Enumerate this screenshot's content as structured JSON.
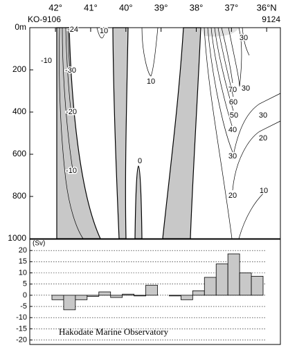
{
  "chart_data": [
    {
      "type": "section",
      "station_start": "KO-9106",
      "station_end": "9124",
      "xlim": [
        42.73,
        35.61
      ],
      "xticks": [
        {
          "value": 42,
          "label": "42°"
        },
        {
          "value": 41,
          "label": "41°"
        },
        {
          "value": 40,
          "label": "40°"
        },
        {
          "value": 39,
          "label": "39°"
        },
        {
          "value": 38,
          "label": "38°"
        },
        {
          "value": 37,
          "label": "37°"
        },
        {
          "value": 36,
          "label": "36°N"
        }
      ],
      "ylim": [
        0,
        1000
      ],
      "yticks": [
        {
          "value": 0,
          "label": "0m"
        },
        200,
        400,
        600,
        800,
        1000
      ],
      "contour_labels": [
        -24,
        10,
        -10,
        -30,
        -20,
        -10,
        10,
        0,
        30,
        70,
        60,
        50,
        40,
        30,
        30,
        20,
        30,
        20,
        10
      ]
    },
    {
      "type": "bar",
      "ylabel": "(Sv)",
      "categories": [
        null,
        null,
        null,
        null,
        null,
        null,
        null,
        null,
        null,
        null,
        null,
        null,
        null,
        null,
        null,
        null,
        null,
        null
      ],
      "values": [
        -2,
        -6.5,
        -2,
        -0.5,
        1.5,
        -1,
        0.5,
        -0.3,
        4.5,
        0,
        -0.3,
        -2,
        2,
        8,
        14,
        18.5,
        10,
        8.5
      ],
      "color": "#c8c8c8",
      "ylim": [
        -22,
        25
      ],
      "yticks": [
        20,
        15,
        10,
        5,
        0,
        -5,
        -10,
        -15,
        -20
      ],
      "grid": true,
      "annotation": "Hakodate Marine Observatory"
    }
  ]
}
